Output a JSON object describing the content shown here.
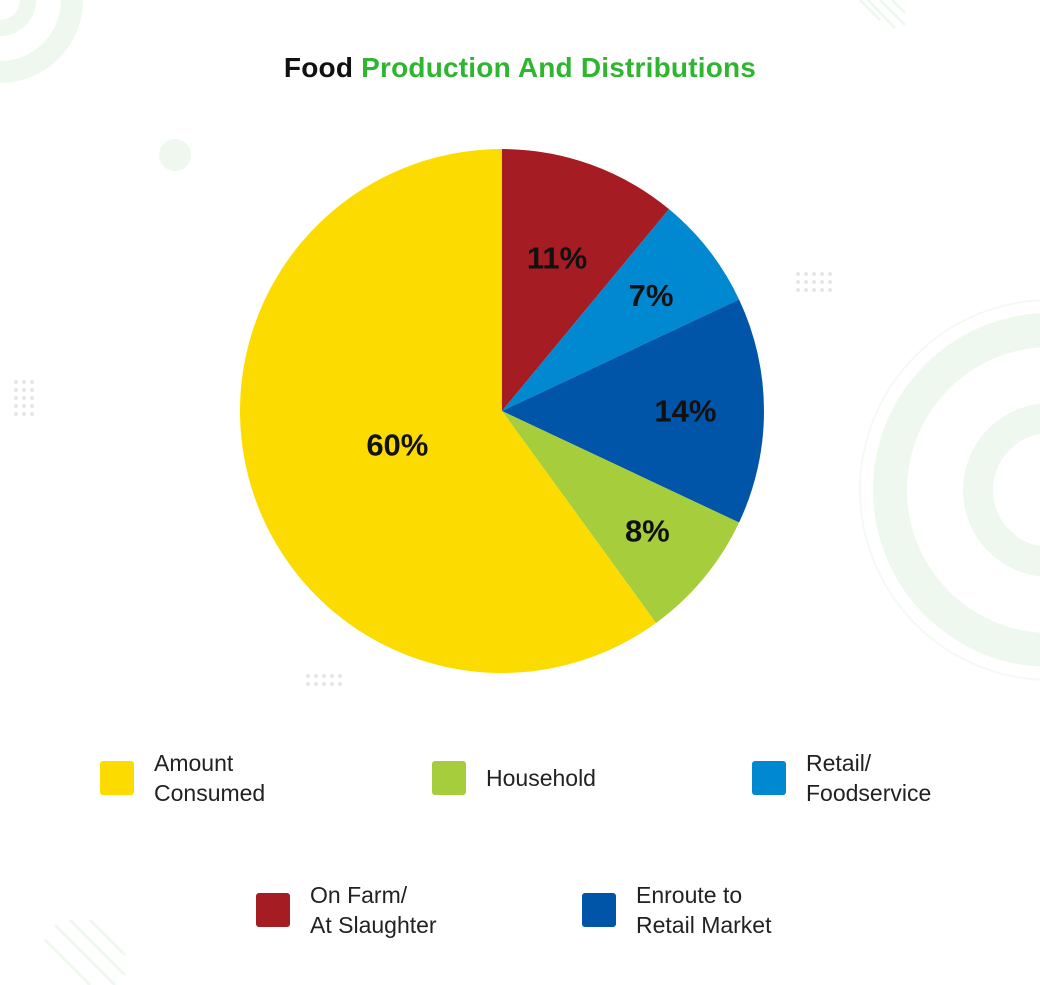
{
  "chart_data": {
    "type": "pie",
    "title": {
      "part1": "Food",
      "part2": "Production And Distributions"
    },
    "slices": [
      {
        "name_lines": [
          "On Farm/",
          "At Slaughter"
        ],
        "value": 11,
        "label": "11%",
        "color": "#a51c22"
      },
      {
        "name_lines": [
          "Retail/",
          "Foodservice"
        ],
        "value": 7,
        "label": "7%",
        "color": "#0088d1"
      },
      {
        "name_lines": [
          "Enroute to",
          "Retail Market"
        ],
        "value": 14,
        "label": "14%",
        "color": "#0055a8"
      },
      {
        "name_lines": [
          "Household"
        ],
        "value": 8,
        "label": "8%",
        "color": "#a6cd3b"
      },
      {
        "name_lines": [
          "Amount",
          "Consumed"
        ],
        "value": 60,
        "label": "60%",
        "color": "#fcdc00"
      }
    ],
    "start": "12 o'clock",
    "direction": "clockwise",
    "legend_position": "bottom",
    "legend_order": [
      4,
      3,
      1,
      0,
      2
    ]
  },
  "colors": {
    "title_accent": "#2fb530",
    "decoration": "#eaf7ea"
  }
}
